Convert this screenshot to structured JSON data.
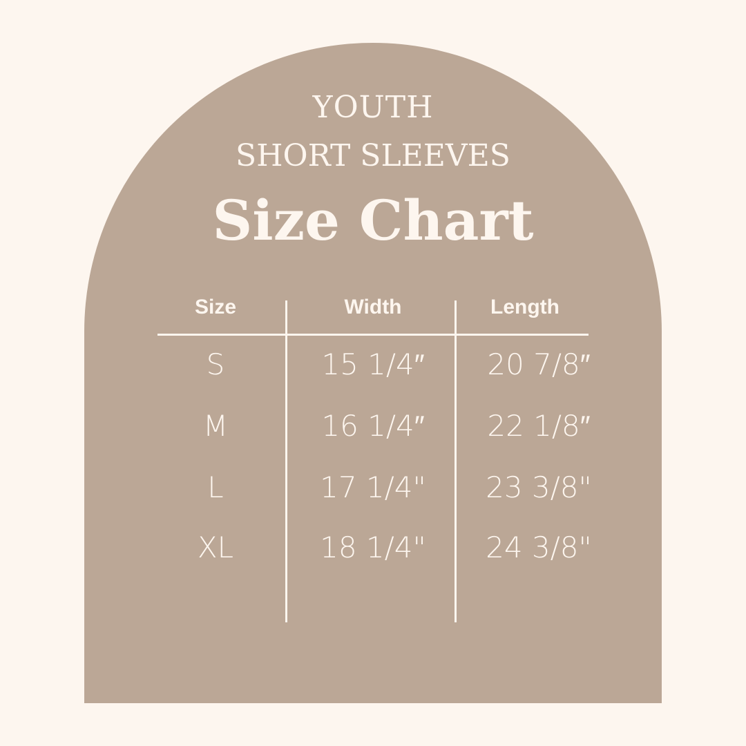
{
  "title": {
    "line1": "YOUTH",
    "line2": "SHORT SLEEVES",
    "line3": "Size Chart"
  },
  "colors": {
    "background": "#fdf6ef",
    "arch": "#bba796",
    "text": "#fdf6ef"
  },
  "table": {
    "headers": [
      "Size",
      "Width",
      "Length"
    ],
    "rows": [
      [
        "S",
        "15 1/4″",
        "20 7/8″"
      ],
      [
        "M",
        "16 1/4″",
        "22 1/8″"
      ],
      [
        "L",
        "17 1/4\"",
        "23 3/8\""
      ],
      [
        "XL",
        "18 1/4\"",
        "24 3/8\""
      ]
    ]
  }
}
